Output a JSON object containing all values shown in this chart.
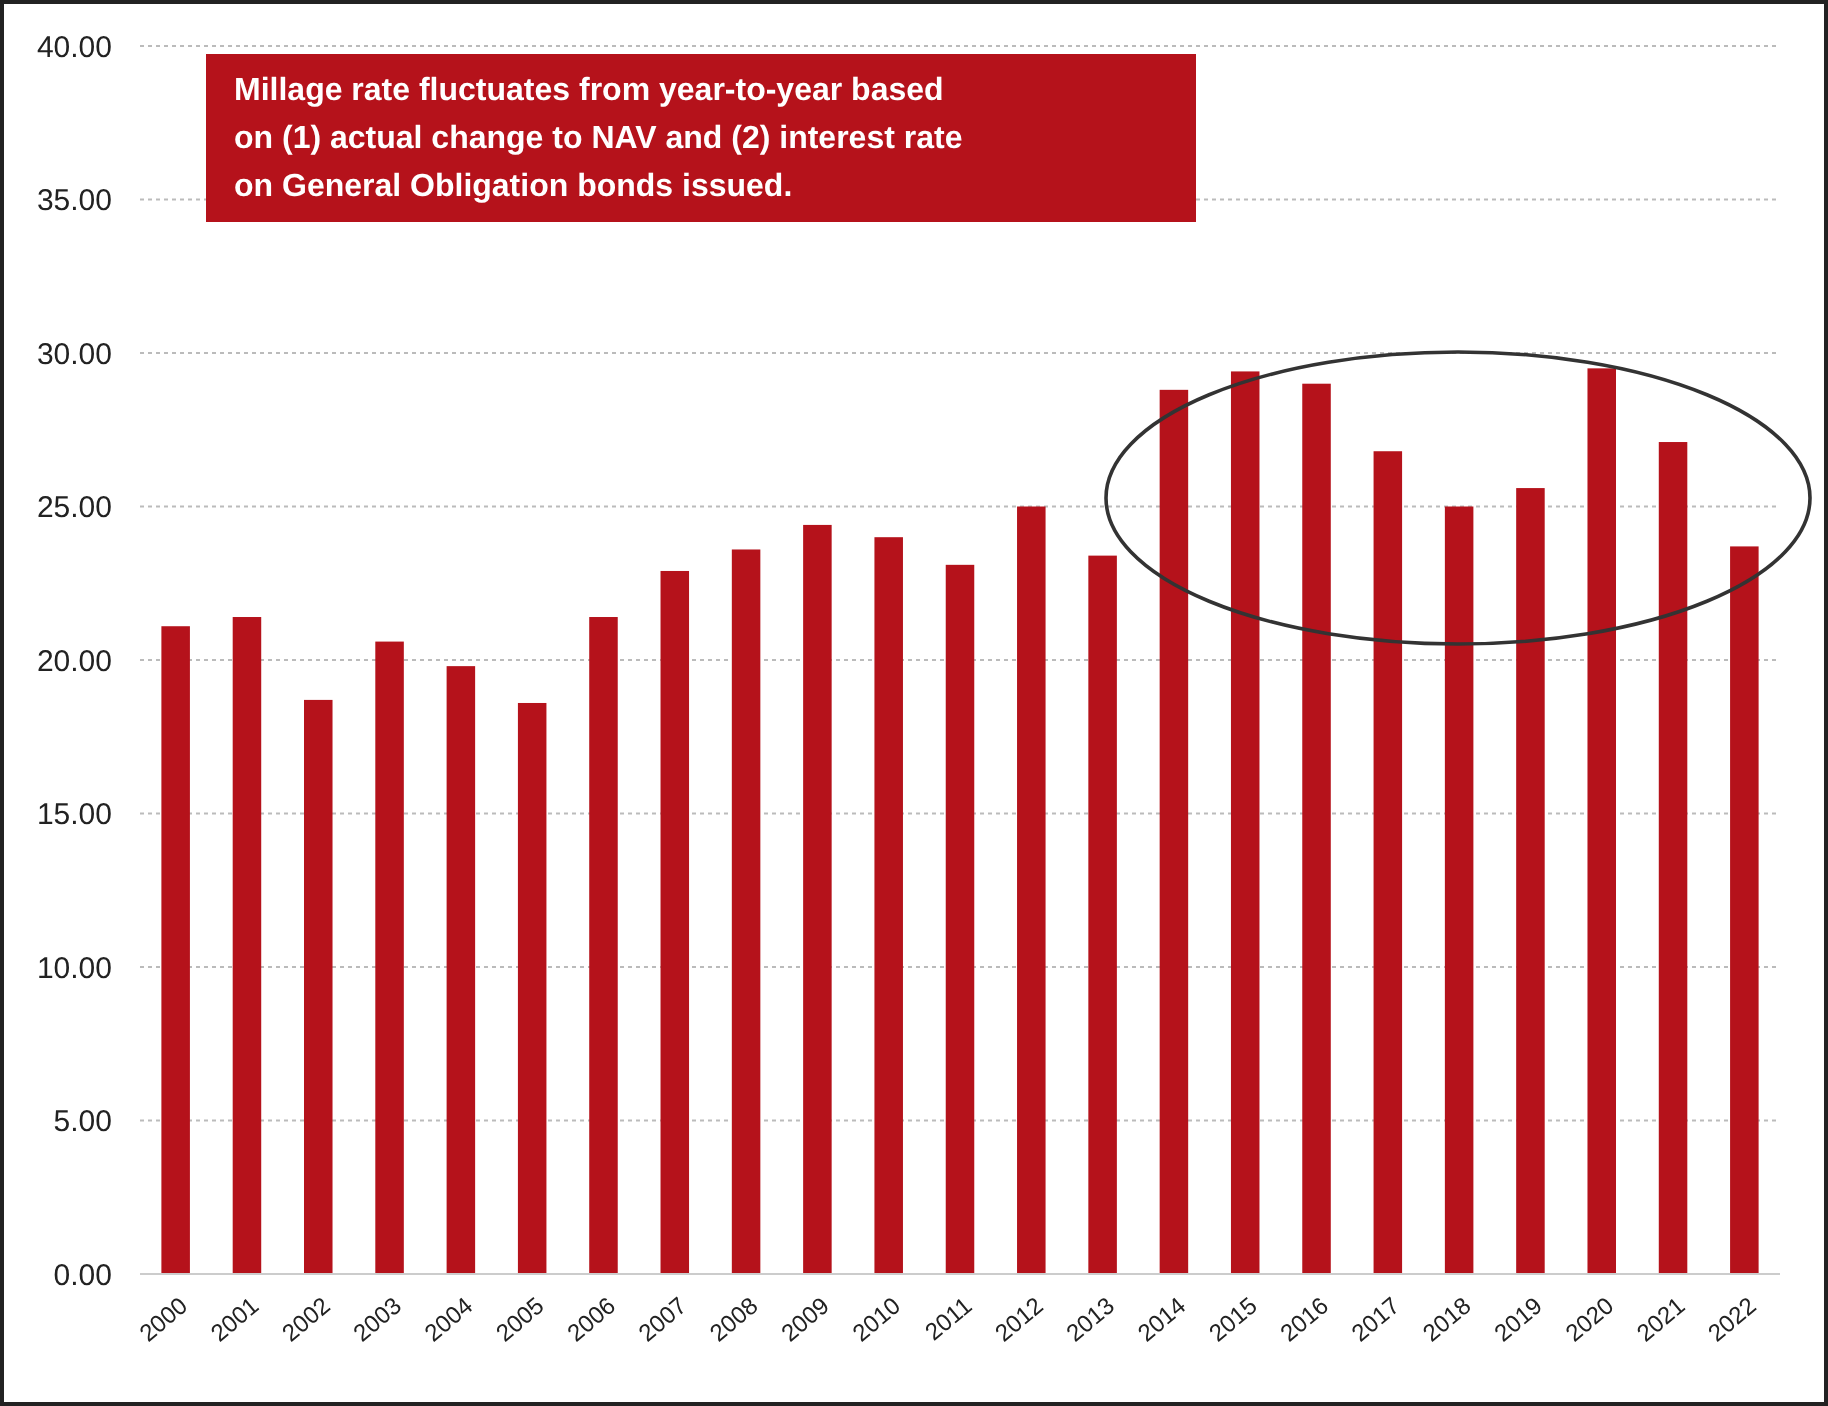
{
  "chart_data": {
    "type": "bar",
    "categories": [
      "2000",
      "2001",
      "2002",
      "2003",
      "2004",
      "2005",
      "2006",
      "2007",
      "2008",
      "2009",
      "2010",
      "2011",
      "2012",
      "2013",
      "2014",
      "2015",
      "2016",
      "2017",
      "2018",
      "2019",
      "2020",
      "2021",
      "2022"
    ],
    "values": [
      21.1,
      21.4,
      18.7,
      20.6,
      19.8,
      18.6,
      21.4,
      22.9,
      23.6,
      24.4,
      24.0,
      23.1,
      25.0,
      23.4,
      28.8,
      29.4,
      29.0,
      26.8,
      25.0,
      25.6,
      29.5,
      27.1,
      23.7
    ],
    "color": "#b5121b",
    "ylim": [
      0,
      40
    ],
    "yticks": [
      {
        "value": 0,
        "label": "0.00"
      },
      {
        "value": 5,
        "label": "5.00"
      },
      {
        "value": 10,
        "label": "10.00"
      },
      {
        "value": 15,
        "label": "15.00"
      },
      {
        "value": 20,
        "label": "20.00"
      },
      {
        "value": 25,
        "label": "25.00"
      },
      {
        "value": 30,
        "label": "30.00"
      },
      {
        "value": 35,
        "label": "35.00"
      },
      {
        "value": 40,
        "label": "40.00"
      }
    ],
    "grid": "y",
    "annotations": [
      "Millage rate fluctuates from year-to-year based on (1) actual change to NAV and (2) interest rate on General Obligation bonds issued."
    ]
  }
}
